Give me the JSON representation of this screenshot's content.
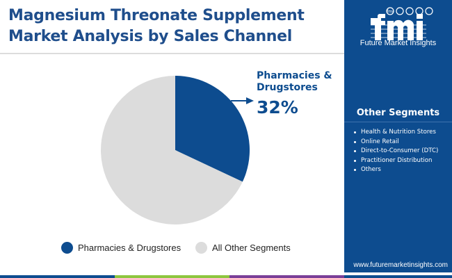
{
  "header": {
    "title": "Magnesium Threonate Supplement Market Analysis by Sales Channel"
  },
  "brand": {
    "logo_letters": "fmi",
    "name": "Future Market Insights",
    "url": "www.futuremarketinsights.com",
    "panel_color": "#0d4c8f"
  },
  "other_segments": {
    "title": "Other Segments",
    "items": [
      "Health & Nutrition Stores",
      "Online Retail",
      "Direct-to-Consumer (DTC)",
      "Practitioner Distribution",
      "Others"
    ]
  },
  "callout": {
    "label": "Pharmacies & Drugstores",
    "value": "32%"
  },
  "chart_data": {
    "type": "pie",
    "series": [
      {
        "name": "Pharmacies & Drugstores",
        "value": 32,
        "color": "#0d4c8f"
      },
      {
        "name": "All Other Segments",
        "value": 68,
        "color": "#dcdcdc"
      }
    ],
    "legend": "bottom"
  },
  "footer_colors": [
    "#0d4c8f",
    "#8dc63f",
    "#7a3f98",
    "#0d4c8f"
  ]
}
